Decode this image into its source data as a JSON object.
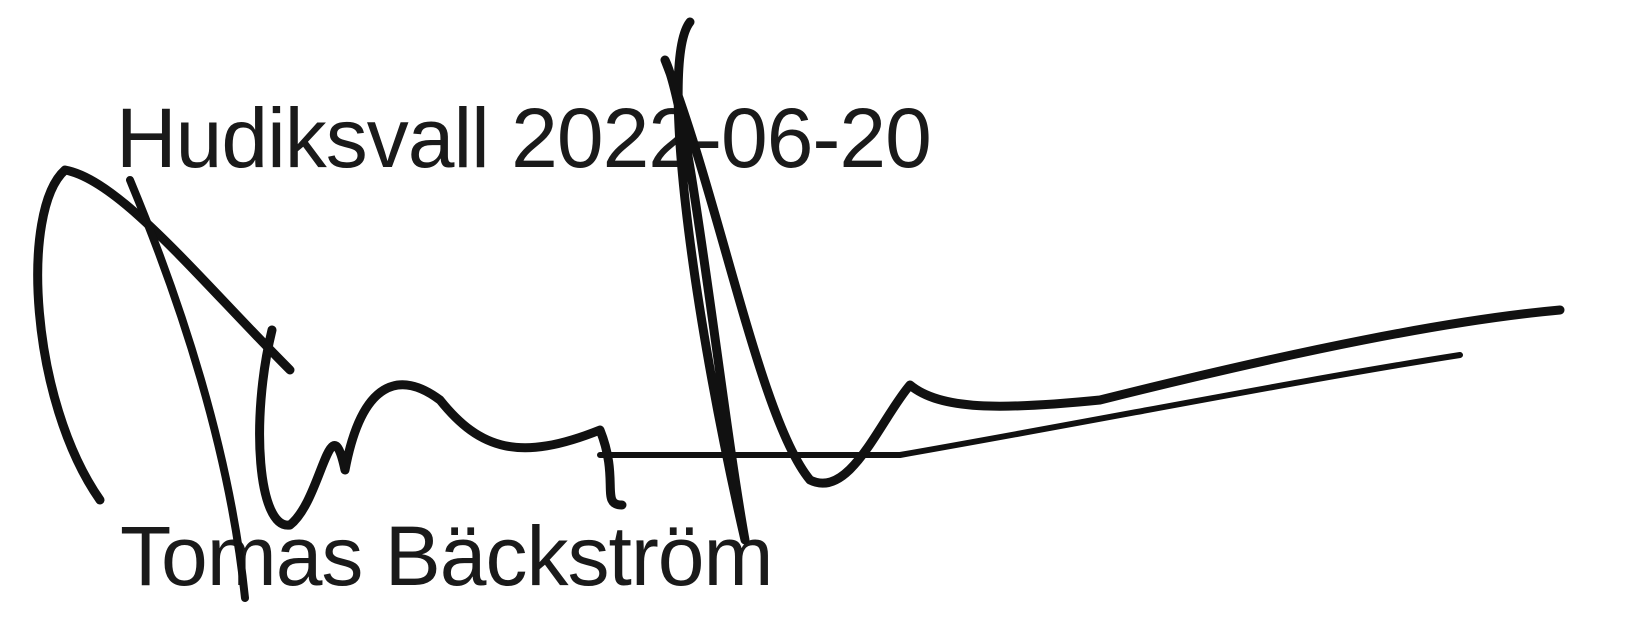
{
  "place_date": "Hudiksvall 2022-06-20",
  "signer_name": "Tomas Bäckström"
}
